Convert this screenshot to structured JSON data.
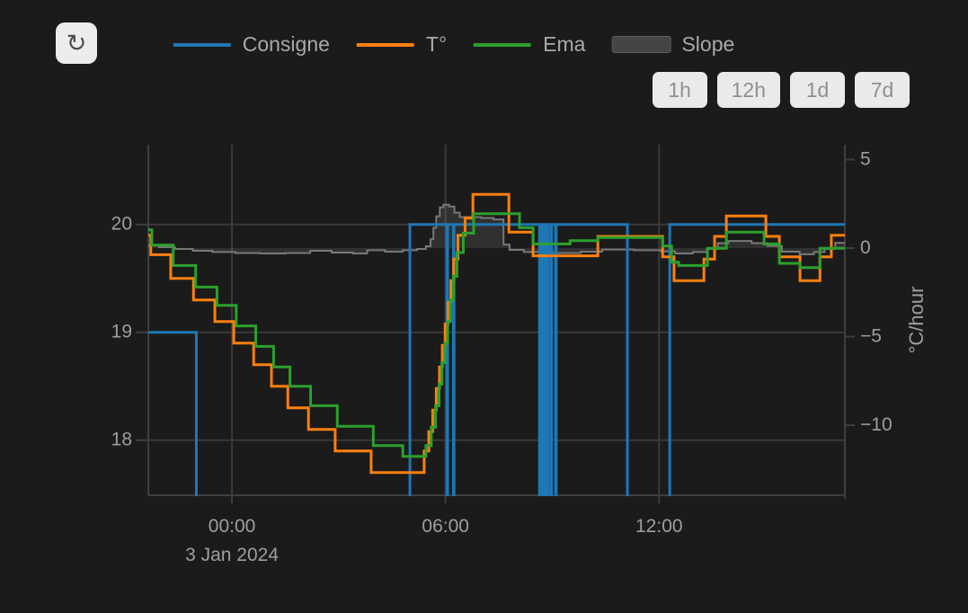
{
  "header": {
    "refresh_icon": "clockwise-open-circle-arrow",
    "refresh_glyph": "↻"
  },
  "legend": {
    "items": [
      {
        "label": "Consigne",
        "color": "#1f77b4",
        "type": "line"
      },
      {
        "label": "T°",
        "color": "#ff7f0e",
        "type": "line"
      },
      {
        "label": "Ema",
        "color": "#2ca02c",
        "type": "line"
      },
      {
        "label": "Slope",
        "color": "#454545",
        "type": "area"
      }
    ]
  },
  "range_buttons": [
    {
      "label": "1h"
    },
    {
      "label": "12h"
    },
    {
      "label": "1d"
    },
    {
      "label": "7d"
    }
  ],
  "colors": {
    "background": "#1b1b1b",
    "grid": "#3a3a3a",
    "axis_line": "#3f3f3f",
    "tick_text": "#9e9e9e",
    "consigne": "#1f77b4",
    "temperature": "#ff7f0e",
    "ema": "#2ca02c",
    "slope_line": "#787878",
    "slope_fill": "rgba(160,160,160,0.16)"
  },
  "chart_data": {
    "type": "line",
    "title": "",
    "x_unit": "hours since 00:00 on 3 Jan 2024 (negative = evening of 2 Jan)",
    "x_axis": {
      "range": [
        -2.35,
        17.22
      ],
      "ticks": [
        {
          "t": 0,
          "label": "00:00"
        },
        {
          "t": 6,
          "label": "06:00"
        },
        {
          "t": 12,
          "label": "12:00"
        }
      ],
      "date_label": {
        "t": 0,
        "label": "3 Jan 2024"
      }
    },
    "y_axis_left": {
      "title": "",
      "range": [
        17.49,
        20.74
      ],
      "ticks": [
        {
          "v": 18,
          "label": "18"
        },
        {
          "v": 19,
          "label": "19"
        },
        {
          "v": 20,
          "label": "20"
        }
      ]
    },
    "y_axis_right": {
      "title": "°C/hour",
      "range": [
        -13.96,
        5.84
      ],
      "ticks": [
        {
          "v": 5,
          "label": "5"
        },
        {
          "v": 0,
          "label": "0"
        },
        {
          "v": -5,
          "label": "−5"
        },
        {
          "v": -10,
          "label": "−10"
        }
      ]
    },
    "grid": true,
    "legend_position": "top",
    "series": [
      {
        "name": "Slope",
        "axis": "right",
        "step": true,
        "width": 2,
        "color": "#787878",
        "fill": "rgba(160,160,160,0.16)",
        "fill_to": 0,
        "points": [
          [
            -2.35,
            0.15
          ],
          [
            -2.05,
            0.05
          ],
          [
            -1.6,
            -0.05
          ],
          [
            -1.1,
            -0.15
          ],
          [
            -0.55,
            -0.22
          ],
          [
            0.1,
            -0.28
          ],
          [
            0.8,
            -0.3
          ],
          [
            1.5,
            -0.28
          ],
          [
            2.2,
            -0.15
          ],
          [
            2.8,
            -0.25
          ],
          [
            3.4,
            -0.3
          ],
          [
            3.8,
            -0.12
          ],
          [
            4.3,
            -0.2
          ],
          [
            4.8,
            -0.12
          ],
          [
            5.2,
            -0.05
          ],
          [
            5.45,
            0.1
          ],
          [
            5.58,
            0.5
          ],
          [
            5.66,
            1.15
          ],
          [
            5.74,
            1.8
          ],
          [
            5.84,
            2.3
          ],
          [
            5.94,
            2.45
          ],
          [
            6.1,
            2.35
          ],
          [
            6.25,
            2.0
          ],
          [
            6.4,
            1.75
          ],
          [
            7.0,
            1.7
          ],
          [
            7.35,
            1.62
          ],
          [
            7.63,
            0.2
          ],
          [
            7.8,
            -0.1
          ],
          [
            8.2,
            -0.22
          ],
          [
            9.0,
            -0.28
          ],
          [
            9.8,
            -0.2
          ],
          [
            10.4,
            -0.08
          ],
          [
            11.3,
            -0.12
          ],
          [
            12.05,
            -0.18
          ],
          [
            12.45,
            -0.3
          ],
          [
            12.95,
            -0.22
          ],
          [
            13.35,
            -0.05
          ],
          [
            13.65,
            0.28
          ],
          [
            13.95,
            0.4
          ],
          [
            14.6,
            0.28
          ],
          [
            15.05,
            0.12
          ],
          [
            15.45,
            -0.2
          ],
          [
            15.95,
            -0.35
          ],
          [
            16.35,
            -0.22
          ],
          [
            16.65,
            -0.05
          ],
          [
            16.95,
            0.3
          ]
        ]
      },
      {
        "name": "Consigne",
        "axis": "left",
        "step": true,
        "width": 3,
        "color": "#1f77b4",
        "note": "setpoint drops below the visible range (below 17.5) during off periods; rendered clipped",
        "points": [
          [
            -2.35,
            19
          ],
          [
            -1.0,
            17.2
          ],
          [
            5.0,
            20
          ],
          [
            6.04,
            17.2
          ],
          [
            6.06,
            20
          ],
          [
            6.22,
            17.2
          ],
          [
            6.24,
            20
          ],
          [
            8.64,
            17.2
          ],
          [
            8.66,
            20
          ],
          [
            8.71,
            17.2
          ],
          [
            8.73,
            20
          ],
          [
            8.79,
            17.2
          ],
          [
            8.81,
            20
          ],
          [
            8.86,
            17.2
          ],
          [
            8.88,
            20
          ],
          [
            8.96,
            17.2
          ],
          [
            8.98,
            20
          ],
          [
            9.09,
            17.2
          ],
          [
            9.11,
            20
          ],
          [
            11.11,
            17.2
          ],
          [
            12.3,
            20
          ]
        ]
      },
      {
        "name": "T°",
        "axis": "left",
        "step": true,
        "width": 3,
        "color": "#ff7f0e",
        "points": [
          [
            -2.35,
            19.9
          ],
          [
            -2.28,
            19.72
          ],
          [
            -1.72,
            19.5
          ],
          [
            -1.08,
            19.3
          ],
          [
            -0.48,
            19.1
          ],
          [
            0.05,
            18.9
          ],
          [
            0.61,
            18.7
          ],
          [
            1.11,
            18.5
          ],
          [
            1.57,
            18.3
          ],
          [
            2.15,
            18.1
          ],
          [
            2.9,
            17.9
          ],
          [
            3.91,
            17.7
          ],
          [
            5.4,
            17.9
          ],
          [
            5.53,
            18.08
          ],
          [
            5.64,
            18.28
          ],
          [
            5.74,
            18.48
          ],
          [
            5.83,
            18.68
          ],
          [
            5.91,
            18.88
          ],
          [
            5.99,
            19.08
          ],
          [
            6.07,
            19.28
          ],
          [
            6.15,
            19.48
          ],
          [
            6.23,
            19.68
          ],
          [
            6.35,
            19.9
          ],
          [
            6.55,
            20.06
          ],
          [
            6.77,
            20.28
          ],
          [
            7.78,
            19.93
          ],
          [
            8.46,
            19.71
          ],
          [
            10.28,
            19.89
          ],
          [
            12.1,
            19.7
          ],
          [
            12.42,
            19.48
          ],
          [
            13.26,
            19.68
          ],
          [
            13.56,
            19.89
          ],
          [
            13.89,
            20.08
          ],
          [
            15.0,
            19.89
          ],
          [
            15.38,
            19.7
          ],
          [
            15.96,
            19.48
          ],
          [
            16.52,
            19.7
          ],
          [
            16.84,
            19.9
          ]
        ]
      },
      {
        "name": "Ema",
        "axis": "left",
        "step": true,
        "width": 3,
        "color": "#2ca02c",
        "points": [
          [
            -2.35,
            19.95
          ],
          [
            -2.25,
            19.81
          ],
          [
            -1.65,
            19.62
          ],
          [
            -1.02,
            19.42
          ],
          [
            -0.42,
            19.25
          ],
          [
            0.12,
            19.06
          ],
          [
            0.67,
            18.87
          ],
          [
            1.17,
            18.68
          ],
          [
            1.63,
            18.5
          ],
          [
            2.21,
            18.32
          ],
          [
            2.96,
            18.13
          ],
          [
            3.97,
            17.95
          ],
          [
            4.8,
            17.85
          ],
          [
            5.45,
            17.95
          ],
          [
            5.6,
            18.12
          ],
          [
            5.72,
            18.32
          ],
          [
            5.82,
            18.52
          ],
          [
            5.9,
            18.72
          ],
          [
            5.98,
            18.9
          ],
          [
            6.06,
            19.1
          ],
          [
            6.14,
            19.3
          ],
          [
            6.22,
            19.52
          ],
          [
            6.32,
            19.74
          ],
          [
            6.5,
            19.92
          ],
          [
            6.79,
            20.1
          ],
          [
            8.08,
            19.97
          ],
          [
            8.46,
            19.82
          ],
          [
            9.5,
            19.85
          ],
          [
            10.28,
            19.88
          ],
          [
            12.1,
            19.8
          ],
          [
            12.35,
            19.65
          ],
          [
            12.55,
            19.62
          ],
          [
            13.36,
            19.78
          ],
          [
            13.89,
            19.93
          ],
          [
            14.95,
            19.82
          ],
          [
            15.38,
            19.64
          ],
          [
            15.96,
            19.6
          ],
          [
            16.52,
            19.78
          ]
        ]
      }
    ]
  }
}
